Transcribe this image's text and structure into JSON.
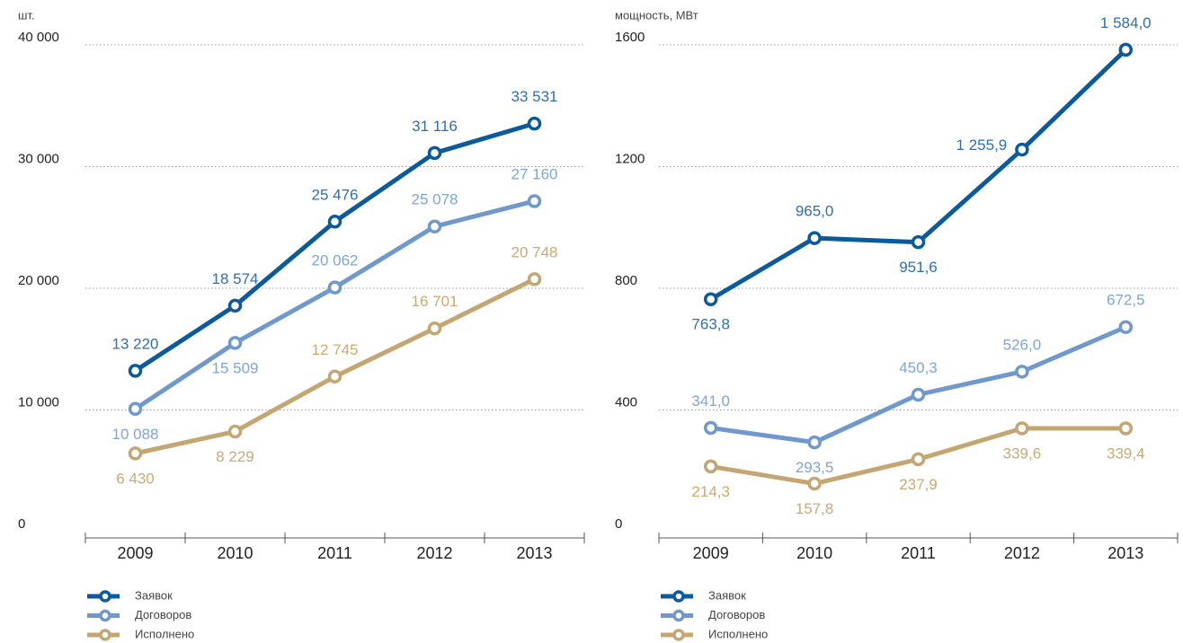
{
  "chart_data": [
    {
      "type": "line",
      "y_label": "шт.",
      "categories": [
        "2009",
        "2010",
        "2011",
        "2012",
        "2013"
      ],
      "ylim": [
        0,
        40000
      ],
      "yticks": [
        0,
        {
          "value": 10000,
          "label": "10 000"
        },
        {
          "value": 20000,
          "label": "20 000"
        },
        {
          "value": 30000,
          "label": "30 000"
        },
        {
          "value": 40000,
          "label": "40 000"
        }
      ],
      "grid": true,
      "series": [
        {
          "name": "Заявок",
          "color": "#0b5a9b",
          "values": [
            13220,
            18574,
            25476,
            31116,
            33531
          ],
          "value_labels": [
            "13 220",
            "18 574",
            "25 476",
            "31 116",
            "33 531"
          ]
        },
        {
          "name": "Договоров",
          "color": "#6f98cc",
          "values": [
            10088,
            15509,
            20062,
            25078,
            27160
          ],
          "value_labels": [
            "10 088",
            "15 509",
            "20 062",
            "25 078",
            "27 160"
          ]
        },
        {
          "name": "Исполнено",
          "color": "#c3a672",
          "values": [
            6430,
            8229,
            12745,
            16701,
            20748
          ],
          "value_labels": [
            "6 430",
            "8 229",
            "12 745",
            "16 701",
            "20 748"
          ]
        }
      ]
    },
    {
      "type": "line",
      "y_label": "мощность, МВт",
      "categories": [
        "2009",
        "2010",
        "2011",
        "2012",
        "2013"
      ],
      "ylim": [
        0,
        1600
      ],
      "yticks": [
        0,
        400,
        800,
        1200,
        1600
      ],
      "grid": true,
      "series": [
        {
          "name": "Заявок",
          "color": "#0b5a9b",
          "values": [
            763.8,
            965.0,
            951.6,
            1255.9,
            1584.0
          ],
          "value_labels": [
            "763,8",
            "965,0",
            "951,6",
            "1 255,9",
            "1 584,0"
          ]
        },
        {
          "name": "Договоров",
          "color": "#6f98cc",
          "values": [
            341.0,
            293.5,
            450.3,
            526.0,
            672.5
          ],
          "value_labels": [
            "341,0",
            "293,5",
            "450,3",
            "526,0",
            "672,5"
          ]
        },
        {
          "name": "Исполнено",
          "color": "#c3a672",
          "values": [
            214.3,
            157.8,
            237.9,
            339.6,
            339.4
          ],
          "value_labels": [
            "214,3",
            "157,8",
            "237,9",
            "339,6",
            "339,4"
          ]
        }
      ]
    }
  ]
}
